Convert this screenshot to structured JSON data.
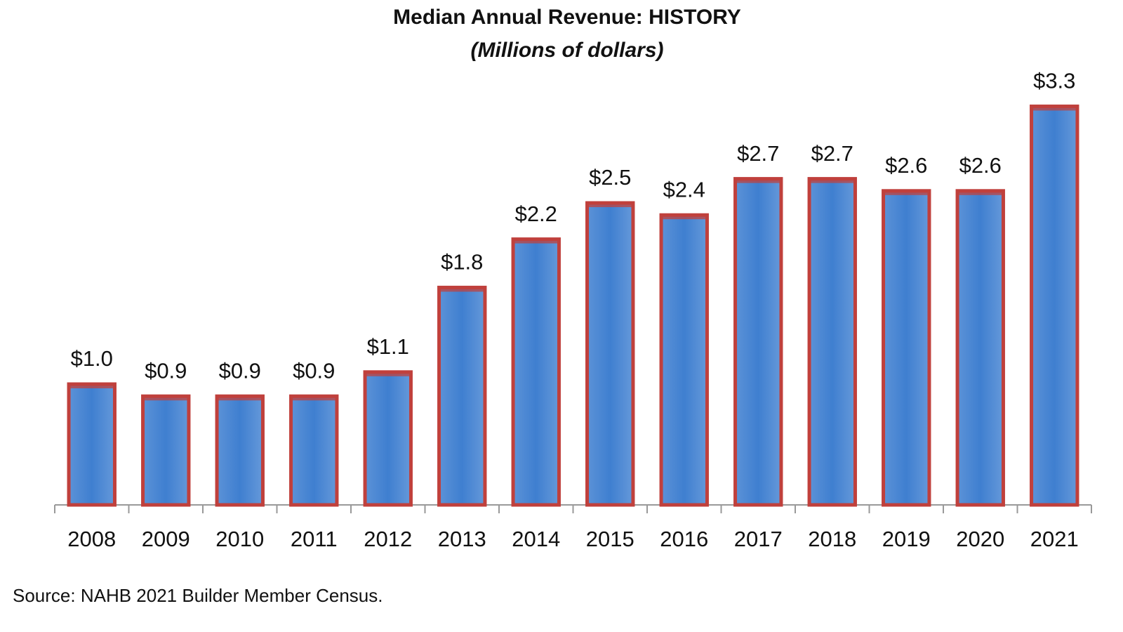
{
  "chart_data": {
    "type": "bar",
    "title": "Median Annual Revenue: HISTORY",
    "subtitle": "(Millions of dollars)",
    "categories": [
      "2008",
      "2009",
      "2010",
      "2011",
      "2012",
      "2013",
      "2014",
      "2015",
      "2016",
      "2017",
      "2018",
      "2019",
      "2020",
      "2021"
    ],
    "values": [
      1.0,
      0.9,
      0.9,
      0.9,
      1.1,
      1.8,
      2.2,
      2.5,
      2.4,
      2.7,
      2.7,
      2.6,
      2.6,
      3.3
    ],
    "value_labels": [
      "$1.0",
      "$0.9",
      "$0.9",
      "$0.9",
      "$1.1",
      "$1.8",
      "$2.2",
      "$2.5",
      "$2.4",
      "$2.7",
      "$2.7",
      "$2.6",
      "$2.6",
      "$3.3"
    ],
    "color": "#3f7fd0",
    "edge_color": "#c0403c",
    "ylim": [
      0,
      3.5
    ],
    "source": "Source: NAHB 2021 Builder Member Census."
  }
}
